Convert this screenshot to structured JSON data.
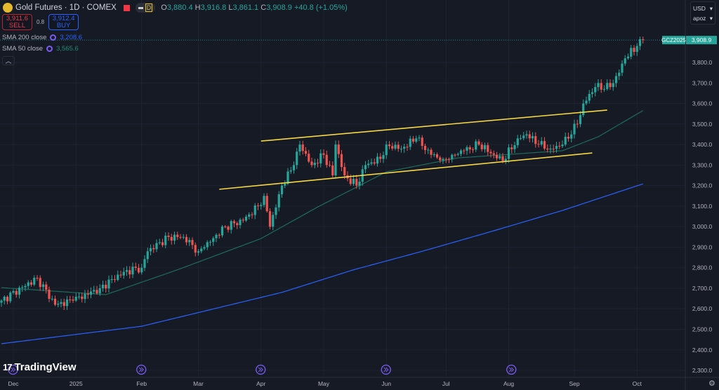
{
  "header": {
    "symbol_title": "Gold Futures · 1D · COMEX",
    "open_label": "O",
    "open": "3,880.4",
    "high_label": "H",
    "high": "3,916.8",
    "low_label": "L",
    "low": "3,861.1",
    "close_label": "C",
    "close": "3,908.9",
    "change": "+40.8 (+1.05%)",
    "badge": "D"
  },
  "trade": {
    "sell_price": "3,911.6",
    "sell_label": "SELL",
    "spread": "0.8",
    "buy_price": "3,912.4",
    "buy_label": "BUY"
  },
  "indicators": [
    {
      "name": "SMA 200 close",
      "value": "3,208.6",
      "color": "#2962ff"
    },
    {
      "name": "SMA 50 close",
      "value": "3,565.6",
      "color": "#1e6b5c"
    }
  ],
  "collapse_icon": "chevron-up",
  "currency": {
    "currency": "USD",
    "unit": "apoz"
  },
  "branding": "TradingView",
  "chart_data": {
    "type": "candlestick",
    "symbol_tag": "GCZ2025",
    "last_price": "3,908.9",
    "last_value": 3908.9,
    "ylim": [
      2270,
      3920
    ],
    "y_ticks": [
      3800,
      3700,
      3600,
      3500,
      3400,
      3300,
      3200,
      3100,
      3000,
      2900,
      2800,
      2700,
      2600,
      2500,
      2400,
      2300
    ],
    "y_tick_labels": [
      "3,800.0",
      "3,700.0",
      "3,600.0",
      "3,500.0",
      "3,400.0",
      "3,300.0",
      "3,200.0",
      "3,100.0",
      "3,000.0",
      "2,900.0",
      "2,800.0",
      "2,700.0",
      "2,600.0",
      "2,500.0",
      "2,400.0",
      "2,300.0"
    ],
    "x_ticks": [
      {
        "day": 4,
        "label": "Dec"
      },
      {
        "day": 25,
        "label": "2025"
      },
      {
        "day": 47,
        "label": "Feb"
      },
      {
        "day": 66,
        "label": "Mar"
      },
      {
        "day": 87,
        "label": "Apr"
      },
      {
        "day": 108,
        "label": "May"
      },
      {
        "day": 129,
        "label": "Jun"
      },
      {
        "day": 149,
        "label": "Jul"
      },
      {
        "day": 170,
        "label": "Aug"
      },
      {
        "day": 192,
        "label": "Sep"
      },
      {
        "day": 213,
        "label": "Oct"
      }
    ],
    "close_anchors": [
      [
        0,
        2640
      ],
      [
        12,
        2750
      ],
      [
        18,
        2620
      ],
      [
        24,
        2640
      ],
      [
        33,
        2700
      ],
      [
        41,
        2780
      ],
      [
        47,
        2800
      ],
      [
        49,
        2880
      ],
      [
        56,
        2950
      ],
      [
        61,
        2950
      ],
      [
        66,
        2880
      ],
      [
        68,
        2900
      ],
      [
        75,
        3000
      ],
      [
        81,
        3030
      ],
      [
        86,
        3100
      ],
      [
        88,
        3150
      ],
      [
        90,
        3000
      ],
      [
        94,
        3200
      ],
      [
        98,
        3300
      ],
      [
        100,
        3400
      ],
      [
        104,
        3300
      ],
      [
        108,
        3350
      ],
      [
        111,
        3250
      ],
      [
        112,
        3400
      ],
      [
        115,
        3250
      ],
      [
        119,
        3200
      ],
      [
        122,
        3300
      ],
      [
        127,
        3330
      ],
      [
        129,
        3400
      ],
      [
        134,
        3380
      ],
      [
        139,
        3430
      ],
      [
        144,
        3350
      ],
      [
        148,
        3330
      ],
      [
        151,
        3350
      ],
      [
        155,
        3370
      ],
      [
        160,
        3400
      ],
      [
        165,
        3350
      ],
      [
        168,
        3320
      ],
      [
        173,
        3430
      ],
      [
        176,
        3450
      ],
      [
        180,
        3400
      ],
      [
        184,
        3380
      ],
      [
        188,
        3400
      ],
      [
        193,
        3500
      ],
      [
        195,
        3600
      ],
      [
        199,
        3680
      ],
      [
        204,
        3680
      ],
      [
        207,
        3750
      ],
      [
        209,
        3820
      ],
      [
        213,
        3880
      ],
      [
        215,
        3908.9
      ]
    ],
    "series": [
      {
        "name": "SMA 200 close",
        "color": "#2962ff",
        "points": [
          [
            0,
            2430
          ],
          [
            47,
            2515
          ],
          [
            94,
            2680
          ],
          [
            118,
            2790
          ],
          [
            141,
            2880
          ],
          [
            165,
            2980
          ],
          [
            188,
            3079
          ],
          [
            215,
            3208.6
          ]
        ]
      },
      {
        "name": "SMA 50 close",
        "color": "#1e6b5c",
        "points": [
          [
            0,
            2703
          ],
          [
            35,
            2669
          ],
          [
            59,
            2790
          ],
          [
            87,
            2942
          ],
          [
            106,
            3096
          ],
          [
            129,
            3267
          ],
          [
            153,
            3335
          ],
          [
            188,
            3370
          ],
          [
            200,
            3438
          ],
          [
            215,
            3565.6
          ]
        ]
      }
    ],
    "trend_lines": [
      {
        "name": "channel-upper",
        "color": "#f5d742",
        "from": [
          87,
          3417
        ],
        "to": [
          203,
          3568
        ]
      },
      {
        "name": "channel-lower",
        "color": "#f5d742",
        "from": [
          73,
          3182
        ],
        "to": [
          198,
          3359
        ]
      }
    ],
    "event_markers": [
      2,
      45,
      85,
      127,
      169
    ],
    "up_color": "#26a69a",
    "down_color": "#ef5350"
  }
}
